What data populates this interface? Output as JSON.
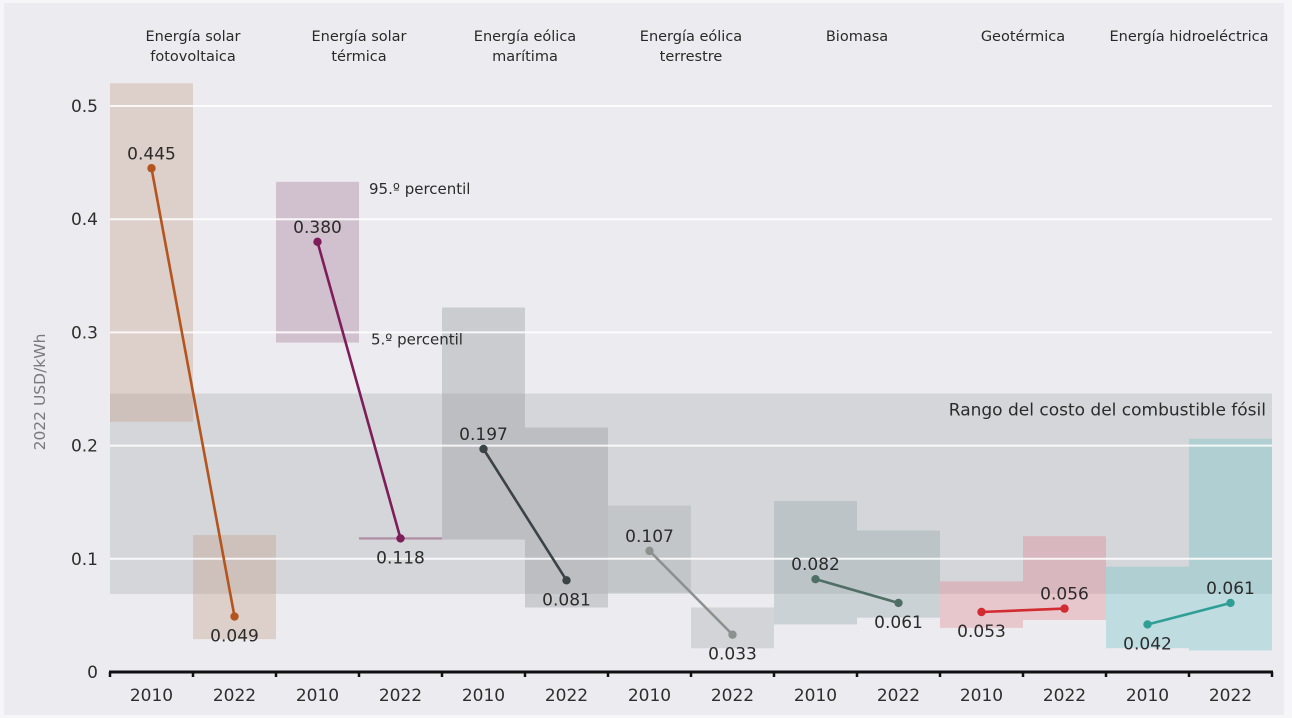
{
  "chart_data": {
    "type": "bar",
    "subtype": "floating-range-bars-with-average-points",
    "title": "",
    "ylabel": "2022 USD/kWh",
    "xlabel": "",
    "ylim": [
      0,
      0.53
    ],
    "yticks": [
      0,
      0.1,
      0.2,
      0.3,
      0.4,
      0.5
    ],
    "ytick_labels": [
      "0",
      "0.1",
      "0.2",
      "0.3",
      "0.4",
      "0.5"
    ],
    "grid": true,
    "years": [
      "2010",
      "2022"
    ],
    "fossil_fuel_range": {
      "label": "Rango del costo del combustible fósil",
      "range": [
        0.069,
        0.246
      ],
      "color": "#a9aeb3"
    },
    "annotations": {
      "upper": "95.º percentil",
      "lower": "5.º percentil"
    },
    "categories": [
      {
        "name": "Energía solar fotovoltaica",
        "name_lines": [
          "Energía solar",
          "fotovoltaica"
        ],
        "line_color": "#b4541e",
        "band_color": "#c49a82",
        "averages": [
          0.445,
          0.049
        ],
        "average_labels": [
          "0.445",
          "0.049"
        ],
        "ranges": [
          [
            0.221,
            0.52
          ],
          [
            0.029,
            0.121
          ]
        ],
        "label_position": [
          "above",
          "below"
        ]
      },
      {
        "name": "Energía solar térmica",
        "name_lines": [
          "Energía solar",
          "térmica"
        ],
        "line_color": "#7d1d5a",
        "band_color": "#a07090",
        "averages": [
          0.38,
          0.118
        ],
        "average_labels": [
          "0.380",
          "0.118"
        ],
        "ranges": [
          [
            0.291,
            0.433
          ],
          [
            0.117,
            0.119
          ]
        ],
        "label_position": [
          "above",
          "below"
        ]
      },
      {
        "name": "Energía eólica marítima",
        "name_lines": [
          "Energía eólica",
          "marítima"
        ],
        "line_color": "#3c4347",
        "band_color": "#8e9296",
        "averages": [
          0.197,
          0.081
        ],
        "average_labels": [
          "0.197",
          "0.081"
        ],
        "ranges": [
          [
            0.117,
            0.322
          ],
          [
            0.057,
            0.216
          ]
        ],
        "label_position": [
          "above",
          "below"
        ]
      },
      {
        "name": "Energía eólica terrestre",
        "name_lines": [
          "Energía eólica",
          "terrestre"
        ],
        "line_color": "#8c918e",
        "band_color": "#a3a8a8",
        "averages": [
          0.107,
          0.033
        ],
        "average_labels": [
          "0.107",
          "0.033"
        ],
        "ranges": [
          [
            0.07,
            0.147
          ],
          [
            0.021,
            0.057
          ]
        ],
        "label_position": [
          "above",
          "below"
        ]
      },
      {
        "name": "Biomasa",
        "name_lines": [
          "Biomasa"
        ],
        "line_color": "#4f6f66",
        "band_color": "#8ea3a3",
        "averages": [
          0.082,
          0.061
        ],
        "average_labels": [
          "0.082",
          "0.061"
        ],
        "ranges": [
          [
            0.042,
            0.151
          ],
          [
            0.048,
            0.125
          ]
        ],
        "label_position": [
          "above",
          "below"
        ]
      },
      {
        "name": "Geotérmica",
        "name_lines": [
          "Geotérmica"
        ],
        "line_color": "#d22b30",
        "band_color": "#e0808a",
        "averages": [
          0.053,
          0.056
        ],
        "average_labels": [
          "0.053",
          "0.056"
        ],
        "ranges": [
          [
            0.039,
            0.08
          ],
          [
            0.046,
            0.12
          ]
        ],
        "label_position": [
          "below",
          "above"
        ]
      },
      {
        "name": "Energía hidroeléctrica",
        "name_lines": [
          "Energía hidroeléctrica"
        ],
        "line_color": "#2f9f96",
        "band_color": "#6cc2c4",
        "averages": [
          0.042,
          0.061
        ],
        "average_labels": [
          "0.042",
          "0.061"
        ],
        "ranges": [
          [
            0.021,
            0.093
          ],
          [
            0.019,
            0.206
          ]
        ],
        "label_position": [
          "below",
          "above"
        ]
      }
    ]
  }
}
